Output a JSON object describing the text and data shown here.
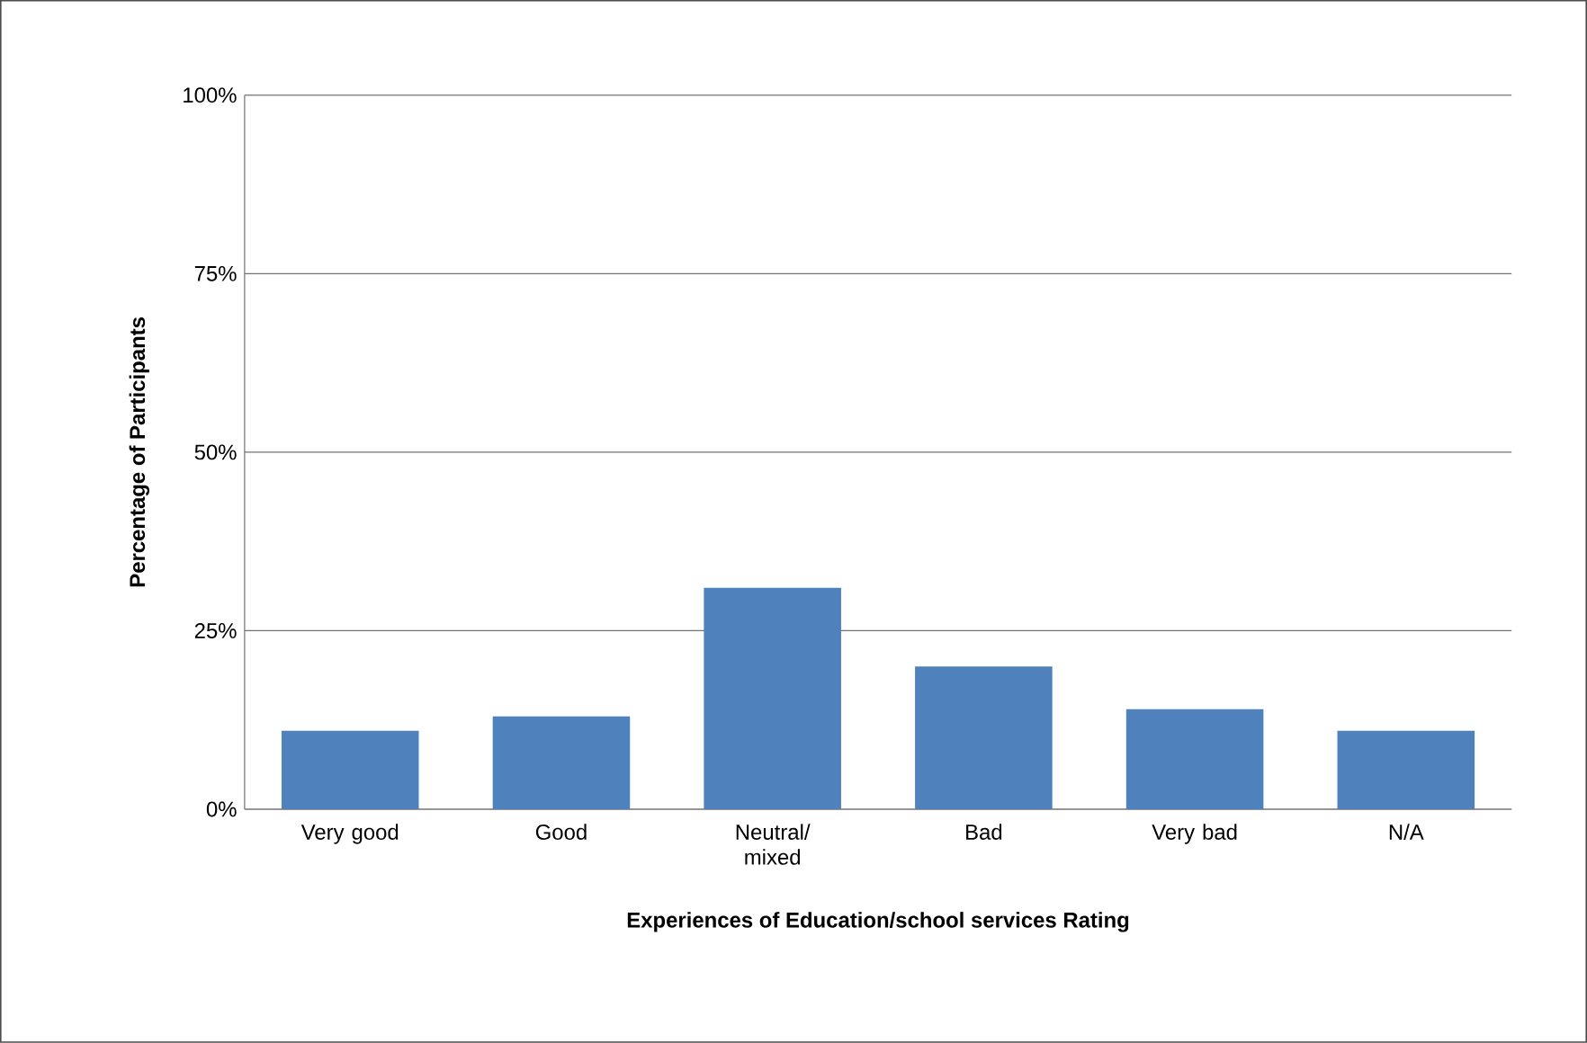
{
  "chart_data": {
    "type": "bar",
    "categories": [
      "Very good",
      "Good",
      "Neutral/ mixed",
      "Bad",
      "Very bad",
      "N/A"
    ],
    "values": [
      11,
      13,
      31,
      20,
      14,
      11
    ],
    "color": "#4f81bd",
    "xlabel": "Experiences of Education/school services Rating",
    "ylabel": "Percentage of Participants",
    "ylim": [
      0,
      100
    ],
    "yticks": [
      {
        "value": 0,
        "label": "0%"
      },
      {
        "value": 25,
        "label": "25%"
      },
      {
        "value": 50,
        "label": "50%"
      },
      {
        "value": 75,
        "label": "75%"
      },
      {
        "value": 100,
        "label": "100%"
      }
    ],
    "grid": "y"
  }
}
